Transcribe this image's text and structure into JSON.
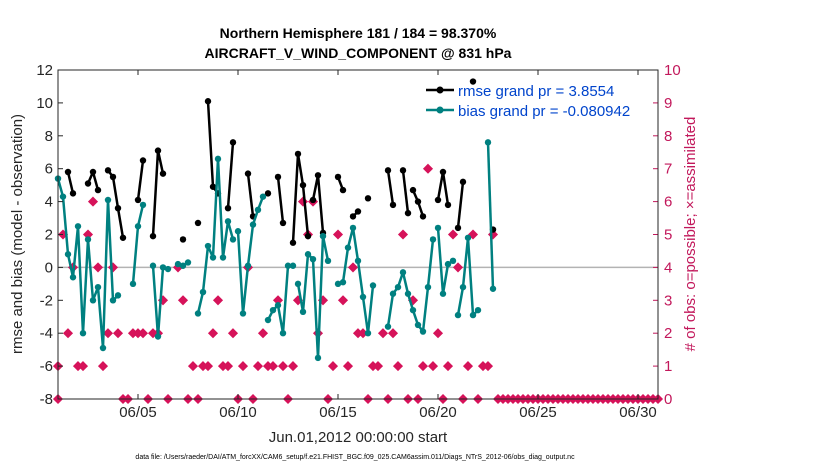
{
  "chart_data": {
    "type": "line",
    "title_line1": "Northern Hemisphere 181 / 184 = 98.370%",
    "title_line2": "AIRCRAFT_V_WIND_COMPONENT @ 831 hPa",
    "xlabel": "Jun.01,2012 00:00:00 start",
    "ylabel_left": "rmse and bias (model - observation)",
    "ylabel_right": "# of obs: o=possible; ×=assimilated",
    "footer": "data file: /Users/raeder/DAI/ATM_forcXX/CAM6_setup/f.e21.FHIST_BGC.f09_025.CAM6assim.011/Diags_NTrS_2012-06/obs_diag_output.nc",
    "x_range": [
      1,
      31
    ],
    "ylim_left": [
      -8,
      12
    ],
    "ylim_right": [
      0,
      10
    ],
    "x_ticks": [
      5,
      10,
      15,
      20,
      25,
      30
    ],
    "x_tick_labels": [
      "06/05",
      "06/10",
      "06/15",
      "06/20",
      "06/25",
      "06/30"
    ],
    "y_ticks_left": [
      -8,
      -6,
      -4,
      -2,
      0,
      2,
      4,
      6,
      8,
      10,
      12
    ],
    "y_ticks_right": [
      0,
      1,
      2,
      3,
      4,
      5,
      6,
      7,
      8,
      9,
      10
    ],
    "legend": [
      "rmse grand pr = 3.8554",
      "bias grand pr = -0.080942"
    ],
    "colors": {
      "rmse": "#000000",
      "bias": "#008080",
      "obs": "#d6135a",
      "axis_right": "#c2185b",
      "legend_text": "#0044cc",
      "zero_line": "#b3b3b3"
    },
    "series": [
      {
        "name": "rmse",
        "segments": [
          [
            [
              1.5,
              5.8
            ],
            [
              1.75,
              4.5
            ]
          ],
          [
            [
              2.5,
              5.1
            ],
            [
              2.75,
              5.8
            ],
            [
              3.0,
              4.7
            ]
          ],
          [
            [
              3.5,
              5.9
            ],
            [
              3.75,
              5.5
            ],
            [
              4.0,
              3.6
            ],
            [
              4.25,
              1.8
            ]
          ],
          [
            [
              5.0,
              4.1
            ],
            [
              5.25,
              6.5
            ]
          ],
          [
            [
              5.75,
              1.9
            ],
            [
              6.0,
              7.1
            ],
            [
              6.25,
              5.7
            ]
          ],
          [
            [
              7.25,
              1.7
            ]
          ],
          [
            [
              8.0,
              2.7
            ]
          ],
          [
            [
              8.5,
              10.1
            ],
            [
              8.75,
              4.9
            ],
            [
              9.0,
              4.5
            ]
          ],
          [
            [
              9.5,
              3.6
            ],
            [
              9.75,
              7.6
            ]
          ],
          [
            [
              10.5,
              5.7
            ],
            [
              10.75,
              3.1
            ]
          ],
          [
            [
              11.5,
              4.5
            ]
          ],
          [
            [
              12.0,
              5.5
            ],
            [
              12.25,
              2.7
            ]
          ],
          [
            [
              12.75,
              1.5
            ],
            [
              13.0,
              6.9
            ],
            [
              13.25,
              5.0
            ],
            [
              13.5,
              1.9
            ]
          ],
          [
            [
              13.75,
              4.1
            ],
            [
              14.0,
              5.6
            ],
            [
              14.25,
              2.1
            ]
          ],
          [
            [
              15.0,
              5.5
            ],
            [
              15.25,
              4.7
            ]
          ],
          [
            [
              15.75,
              3.1
            ],
            [
              16.0,
              3.4
            ]
          ],
          [
            [
              16.5,
              4.2
            ]
          ],
          [
            [
              17.5,
              5.9
            ],
            [
              17.75,
              3.8
            ]
          ],
          [
            [
              18.25,
              5.9
            ],
            [
              18.5,
              3.3
            ]
          ],
          [
            [
              18.75,
              4.7
            ],
            [
              19.0,
              4.0
            ],
            [
              19.25,
              3.1
            ]
          ],
          [
            [
              20.0,
              4.1
            ],
            [
              20.25,
              5.8
            ],
            [
              20.5,
              3.8
            ]
          ],
          [
            [
              21.0,
              2.4
            ],
            [
              21.25,
              5.2
            ]
          ],
          [
            [
              21.75,
              11.3
            ]
          ],
          [
            [
              22.75,
              2.3
            ]
          ]
        ]
      },
      {
        "name": "bias",
        "segments": [
          [
            [
              1.0,
              5.4
            ],
            [
              1.25,
              4.3
            ],
            [
              1.5,
              0.8
            ],
            [
              1.75,
              -0.6
            ],
            [
              2.0,
              2.5
            ],
            [
              2.25,
              -4.0
            ],
            [
              2.5,
              1.7
            ],
            [
              2.75,
              -2.0
            ],
            [
              3.0,
              -1.2
            ],
            [
              3.25,
              -4.9
            ],
            [
              3.5,
              4.1
            ],
            [
              3.75,
              -2.0
            ],
            [
              4.0,
              -1.7
            ]
          ],
          [
            [
              4.75,
              -1.0
            ],
            [
              5.0,
              2.5
            ],
            [
              5.25,
              3.8
            ]
          ],
          [
            [
              5.75,
              0.1
            ],
            [
              6.0,
              -4.2
            ],
            [
              6.25,
              0.0
            ],
            [
              6.5,
              -0.1
            ]
          ],
          [
            [
              7.0,
              0.2
            ],
            [
              7.25,
              0.1
            ],
            [
              7.5,
              0.3
            ]
          ],
          [
            [
              8.0,
              -2.8
            ],
            [
              8.25,
              -1.5
            ],
            [
              8.5,
              1.3
            ],
            [
              8.75,
              0.6
            ],
            [
              9.0,
              6.6
            ],
            [
              9.25,
              0.6
            ],
            [
              9.5,
              2.8
            ],
            [
              9.75,
              1.7
            ]
          ],
          [
            [
              10.0,
              2.2
            ],
            [
              10.25,
              -2.8
            ],
            [
              10.5,
              0.1
            ],
            [
              10.75,
              2.6
            ],
            [
              11.0,
              3.5
            ],
            [
              11.25,
              4.3
            ]
          ],
          [
            [
              11.5,
              -3.2
            ],
            [
              11.75,
              -2.6
            ],
            [
              12.0,
              -2.3
            ],
            [
              12.25,
              -4.0
            ],
            [
              12.5,
              0.1
            ],
            [
              12.75,
              0.1
            ]
          ],
          [
            [
              13.0,
              -1.0
            ],
            [
              13.25,
              -2.7
            ],
            [
              13.5,
              0.8
            ],
            [
              13.75,
              0.5
            ],
            [
              14.0,
              -5.5
            ],
            [
              14.25,
              1.9
            ],
            [
              14.5,
              0.4
            ]
          ],
          [
            [
              15.0,
              -1.0
            ],
            [
              15.25,
              -0.9
            ],
            [
              15.5,
              1.2
            ],
            [
              15.75,
              2.4
            ],
            [
              16.0,
              0.4
            ],
            [
              16.25,
              -1.8
            ],
            [
              16.5,
              -4.0
            ],
            [
              16.75,
              -1.1
            ]
          ],
          [
            [
              17.5,
              -3.6
            ],
            [
              17.75,
              -1.6
            ],
            [
              18.0,
              -1.2
            ],
            [
              18.25,
              -0.3
            ],
            [
              18.5,
              -1.6
            ],
            [
              18.75,
              -2.6
            ],
            [
              19.0,
              -3.5
            ],
            [
              19.25,
              -3.9
            ],
            [
              19.5,
              -1.2
            ],
            [
              19.75,
              1.7
            ]
          ],
          [
            [
              20.0,
              2.4
            ],
            [
              20.25,
              -1.6
            ],
            [
              20.5,
              0.2
            ],
            [
              20.75,
              0.4
            ]
          ],
          [
            [
              21.0,
              -2.9
            ],
            [
              21.25,
              -1.2
            ],
            [
              21.5,
              1.8
            ],
            [
              21.75,
              -2.9
            ],
            [
              22.0,
              -2.6
            ]
          ],
          [
            [
              22.5,
              7.6
            ],
            [
              22.75,
              -1.3
            ]
          ]
        ]
      }
    ],
    "obs_possible": [
      [
        1.0,
        1
      ],
      [
        1.0,
        0
      ],
      [
        1.25,
        5
      ],
      [
        1.5,
        2
      ],
      [
        1.75,
        4
      ],
      [
        2.0,
        1
      ],
      [
        2.25,
        1
      ],
      [
        2.5,
        5
      ],
      [
        2.75,
        6
      ],
      [
        3.0,
        4
      ],
      [
        3.25,
        1
      ],
      [
        3.5,
        2
      ],
      [
        3.75,
        4
      ],
      [
        4.0,
        2
      ],
      [
        4.25,
        0
      ],
      [
        4.5,
        0
      ],
      [
        4.75,
        2
      ],
      [
        5.0,
        2
      ],
      [
        5.25,
        2
      ],
      [
        5.5,
        0
      ],
      [
        5.75,
        2
      ],
      [
        6.0,
        2
      ],
      [
        6.25,
        3
      ],
      [
        6.5,
        0
      ],
      [
        7.0,
        4
      ],
      [
        7.25,
        3
      ],
      [
        7.5,
        0
      ],
      [
        7.75,
        1
      ],
      [
        8.0,
        0
      ],
      [
        8.25,
        1
      ],
      [
        8.5,
        1
      ],
      [
        8.75,
        2
      ],
      [
        9.0,
        3
      ],
      [
        9.25,
        1
      ],
      [
        9.5,
        1
      ],
      [
        9.75,
        2
      ],
      [
        10.0,
        0
      ],
      [
        10.25,
        1
      ],
      [
        10.5,
        4
      ],
      [
        10.75,
        0
      ],
      [
        11.0,
        1
      ],
      [
        11.25,
        2
      ],
      [
        11.5,
        1
      ],
      [
        11.75,
        1
      ],
      [
        12.0,
        3
      ],
      [
        12.25,
        1
      ],
      [
        12.5,
        0
      ],
      [
        12.75,
        1
      ],
      [
        13.0,
        3
      ],
      [
        13.25,
        6
      ],
      [
        13.5,
        5
      ],
      [
        13.75,
        6
      ],
      [
        14.0,
        2
      ],
      [
        14.25,
        3
      ],
      [
        14.5,
        0
      ],
      [
        14.75,
        1
      ],
      [
        15.0,
        5
      ],
      [
        15.25,
        3
      ],
      [
        15.5,
        1
      ],
      [
        15.75,
        4
      ],
      [
        16.0,
        2
      ],
      [
        16.25,
        2
      ],
      [
        16.5,
        0
      ],
      [
        16.75,
        1
      ],
      [
        17.0,
        1
      ],
      [
        17.25,
        2
      ],
      [
        17.5,
        0
      ],
      [
        17.75,
        2
      ],
      [
        18.0,
        1
      ],
      [
        18.25,
        5
      ],
      [
        18.5,
        0
      ],
      [
        18.75,
        3
      ],
      [
        19.0,
        0
      ],
      [
        19.25,
        1
      ],
      [
        19.5,
        7
      ],
      [
        19.75,
        1
      ],
      [
        20.0,
        2
      ],
      [
        20.25,
        0
      ],
      [
        20.5,
        1
      ],
      [
        20.75,
        5
      ],
      [
        21.0,
        4
      ],
      [
        21.25,
        0
      ],
      [
        21.5,
        1
      ],
      [
        21.75,
        5
      ],
      [
        22.0,
        0
      ],
      [
        22.25,
        1
      ],
      [
        22.5,
        1
      ],
      [
        22.75,
        5
      ],
      [
        23.0,
        0
      ],
      [
        23.25,
        0
      ],
      [
        23.5,
        0
      ],
      [
        23.75,
        0
      ],
      [
        24.0,
        0
      ],
      [
        24.25,
        0
      ],
      [
        24.5,
        0
      ],
      [
        24.75,
        0
      ],
      [
        25.0,
        0
      ],
      [
        25.25,
        0
      ],
      [
        25.5,
        0
      ],
      [
        25.75,
        0
      ],
      [
        26.0,
        0
      ],
      [
        26.25,
        0
      ],
      [
        26.5,
        0
      ],
      [
        26.75,
        0
      ],
      [
        27.0,
        0
      ],
      [
        27.25,
        0
      ],
      [
        27.5,
        0
      ],
      [
        27.75,
        0
      ],
      [
        28.0,
        0
      ],
      [
        28.25,
        0
      ],
      [
        28.5,
        0
      ],
      [
        28.75,
        0
      ],
      [
        29.0,
        0
      ],
      [
        29.25,
        0
      ],
      [
        29.5,
        0
      ],
      [
        29.75,
        0
      ],
      [
        30.0,
        0
      ],
      [
        30.25,
        0
      ],
      [
        30.5,
        0
      ],
      [
        30.75,
        0
      ],
      [
        31.0,
        0
      ]
    ]
  }
}
